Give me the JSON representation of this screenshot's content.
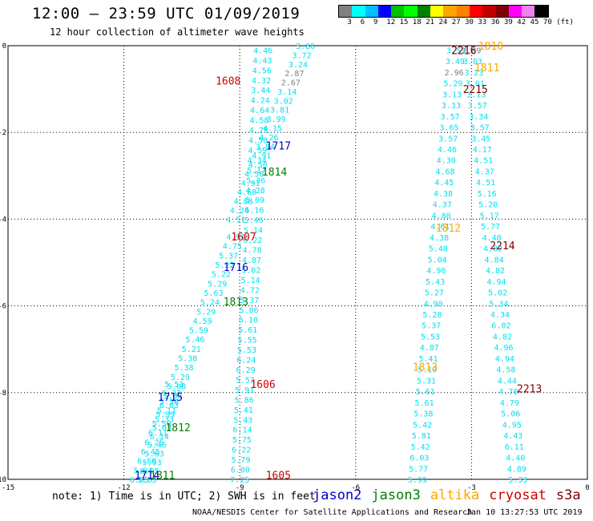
{
  "title": "12:00 – 23:59 UTC 01/09/2019",
  "subtitle": "12 hour collection of altimeter wave heights",
  "legend": {
    "colors": [
      "#808080",
      "#00ffff",
      "#00bfff",
      "#0000ff",
      "#00c000",
      "#00ff00",
      "#008000",
      "#ffff00",
      "#ffa500",
      "#ff8000",
      "#ff0000",
      "#c00000",
      "#800000",
      "#ff00ff",
      "#ee82ee",
      "#000000"
    ],
    "labels": [
      "3",
      "6",
      "9",
      "12",
      "15",
      "18",
      "21",
      "24",
      "27",
      "30",
      "33",
      "36",
      "39",
      "42",
      "45",
      "70",
      "(ft)"
    ]
  },
  "note": "note: 1) Time is in UTC; 2) SWH is in feet",
  "satellites": [
    {
      "name": "jason2",
      "color": "#0000cc"
    },
    {
      "name": "jason3",
      "color": "#008000"
    },
    {
      "name": "altika",
      "color": "#ffa500"
    },
    {
      "name": "cryosat",
      "color": "#cc0000"
    },
    {
      "name": "s3a",
      "color": "#800000"
    }
  ],
  "footer_left": "NOAA/NESDIS Center for Satellite Applications and Research",
  "footer_right": "Jan 10 13:27:53 UTC 2019",
  "chart_data": {
    "type": "scatter",
    "xlim": [
      -15,
      0
    ],
    "ylim": [
      -10,
      0
    ],
    "x_ticks": [
      "-15",
      "-12",
      "-9",
      "-6",
      "-3",
      "0"
    ],
    "y_ticks": [
      "0",
      "-2",
      "-4",
      "-6",
      "-8",
      "-10"
    ],
    "grid": true,
    "tracks": [
      {
        "satellite": "cryosat",
        "values": [
          4.46,
          4.43,
          4.56,
          4.32,
          3.44,
          4.24,
          4.64,
          4.58,
          4.78,
          4.5,
          4.59,
          4.34,
          5.17,
          5.36,
          4.28,
          5.09,
          6.16,
          5.46,
          5.14,
          6.22,
          4.78,
          4.87,
          5.02,
          5.14,
          4.72,
          5.37,
          5.06,
          6.1,
          5.61,
          5.55,
          5.53,
          6.24,
          6.29,
          5.52,
          5.91,
          5.86,
          5.41,
          5.43,
          6.14,
          5.75,
          6.22,
          5.79,
          6.0,
          7.25
        ],
        "start": [
          -8.4,
          -0.1
        ],
        "end": [
          -9.0,
          -10.0
        ]
      },
      {
        "satellite": "jason3",
        "values": [
          3.8,
          3.72,
          3.24,
          2.87,
          2.67,
          3.14,
          3.02,
          3.81,
          3.99,
          4.15,
          4.26,
          3.94,
          4.91,
          4.5,
          4.56,
          4.91,
          4.68,
          4.88,
          4.24,
          4.51
        ],
        "start": [
          -7.3,
          0.0
        ],
        "end": [
          -9.1,
          -4.0
        ]
      },
      {
        "satellite": "jason2",
        "values": [
          4.91,
          4.75,
          5.37,
          5.22,
          5.22,
          5.29,
          5.63,
          5.24,
          5.29,
          4.59,
          5.59,
          5.46,
          5.21,
          5.38,
          5.38,
          5.29,
          5.08,
          5.92,
          6.03,
          5.99,
          5.59,
          6.11,
          6.25,
          6.45,
          6.6,
          5.94,
          6.85
        ],
        "start": [
          -9.1,
          -4.4
        ],
        "end": [
          -11.6,
          -10.0
        ]
      },
      {
        "satellite": "jason3",
        "values": [
          5.53,
          5.32,
          5.56,
          5.11,
          5.33,
          5.03,
          6.14,
          5.46,
          5.63,
          5.93,
          6.05,
          5.85
        ],
        "start": [
          -10.7,
          -7.8
        ],
        "end": [
          -11.4,
          -10.0
        ]
      },
      {
        "satellite": "altika",
        "values": [
          3.53,
          3.49,
          2.96,
          5.29,
          3.13,
          3.33,
          3.57,
          3.65,
          3.57,
          4.46,
          4.3,
          4.68,
          4.45,
          4.38,
          4.37,
          4.8,
          4.61,
          4.38,
          5.48,
          5.04,
          4.9,
          5.43,
          5.27,
          4.9,
          5.28,
          5.37,
          5.53,
          4.87,
          5.41,
          5.19,
          5.31,
          5.61,
          5.61,
          5.38,
          5.42,
          5.81,
          5.42,
          6.03,
          5.77,
          5.99
        ],
        "start": [
          -3.4,
          -0.1
        ],
        "end": [
          -4.4,
          -10.0
        ]
      },
      {
        "satellite": "s3a",
        "values": [
          2.89,
          3.03,
          3.23,
          3.01,
          3.13,
          3.57,
          3.34,
          3.57,
          3.45,
          4.17,
          4.51,
          4.37,
          4.51,
          5.16,
          5.2,
          5.17,
          5.77,
          4.48,
          4.82,
          4.84,
          4.82,
          4.94,
          5.02,
          5.34,
          4.34,
          6.02,
          4.82,
          4.96,
          4.94,
          4.58,
          4.44,
          4.7,
          4.79,
          5.06,
          4.95,
          4.43,
          6.11,
          4.4,
          4.89,
          5.33
        ],
        "start": [
          -3.0,
          -0.1
        ],
        "end": [
          -1.8,
          -10.0
        ]
      }
    ],
    "time_labels": [
      {
        "text": "1810",
        "x": -2.5,
        "y": 0.0,
        "satellite": "altika"
      },
      {
        "text": "2216",
        "x": -3.2,
        "y": -0.1,
        "satellite": "s3a"
      },
      {
        "text": "1811",
        "x": -2.6,
        "y": -0.5,
        "satellite": "altika"
      },
      {
        "text": "1608",
        "x": -9.3,
        "y": -0.8,
        "satellite": "cryosat"
      },
      {
        "text": "2215",
        "x": -2.9,
        "y": -1.0,
        "satellite": "s3a"
      },
      {
        "text": "1717",
        "x": -8.0,
        "y": -2.3,
        "satellite": "jason2"
      },
      {
        "text": "1814",
        "x": -8.1,
        "y": -2.9,
        "satellite": "jason3"
      },
      {
        "text": "1812",
        "x": -3.6,
        "y": -4.2,
        "satellite": "altika"
      },
      {
        "text": "1607",
        "x": -8.9,
        "y": -4.4,
        "satellite": "cryosat"
      },
      {
        "text": "2214",
        "x": -2.2,
        "y": -4.6,
        "satellite": "s3a"
      },
      {
        "text": "1716",
        "x": -9.1,
        "y": -5.1,
        "satellite": "jason2"
      },
      {
        "text": "1813",
        "x": -9.1,
        "y": -5.9,
        "satellite": "jason3"
      },
      {
        "text": "1813",
        "x": -4.2,
        "y": -7.4,
        "satellite": "altika"
      },
      {
        "text": "1606",
        "x": -8.4,
        "y": -7.8,
        "satellite": "cryosat"
      },
      {
        "text": "2213",
        "x": -1.5,
        "y": -7.9,
        "satellite": "s3a"
      },
      {
        "text": "1715",
        "x": -10.8,
        "y": -8.1,
        "satellite": "jason2"
      },
      {
        "text": "1812",
        "x": -10.6,
        "y": -8.8,
        "satellite": "jason3"
      },
      {
        "text": "1605",
        "x": -8.0,
        "y": -9.9,
        "satellite": "cryosat"
      },
      {
        "text": "1714",
        "x": -11.4,
        "y": -9.9,
        "satellite": "jason2"
      },
      {
        "text": "1811",
        "x": -11.0,
        "y": -9.9,
        "satellite": "jason3"
      }
    ]
  }
}
